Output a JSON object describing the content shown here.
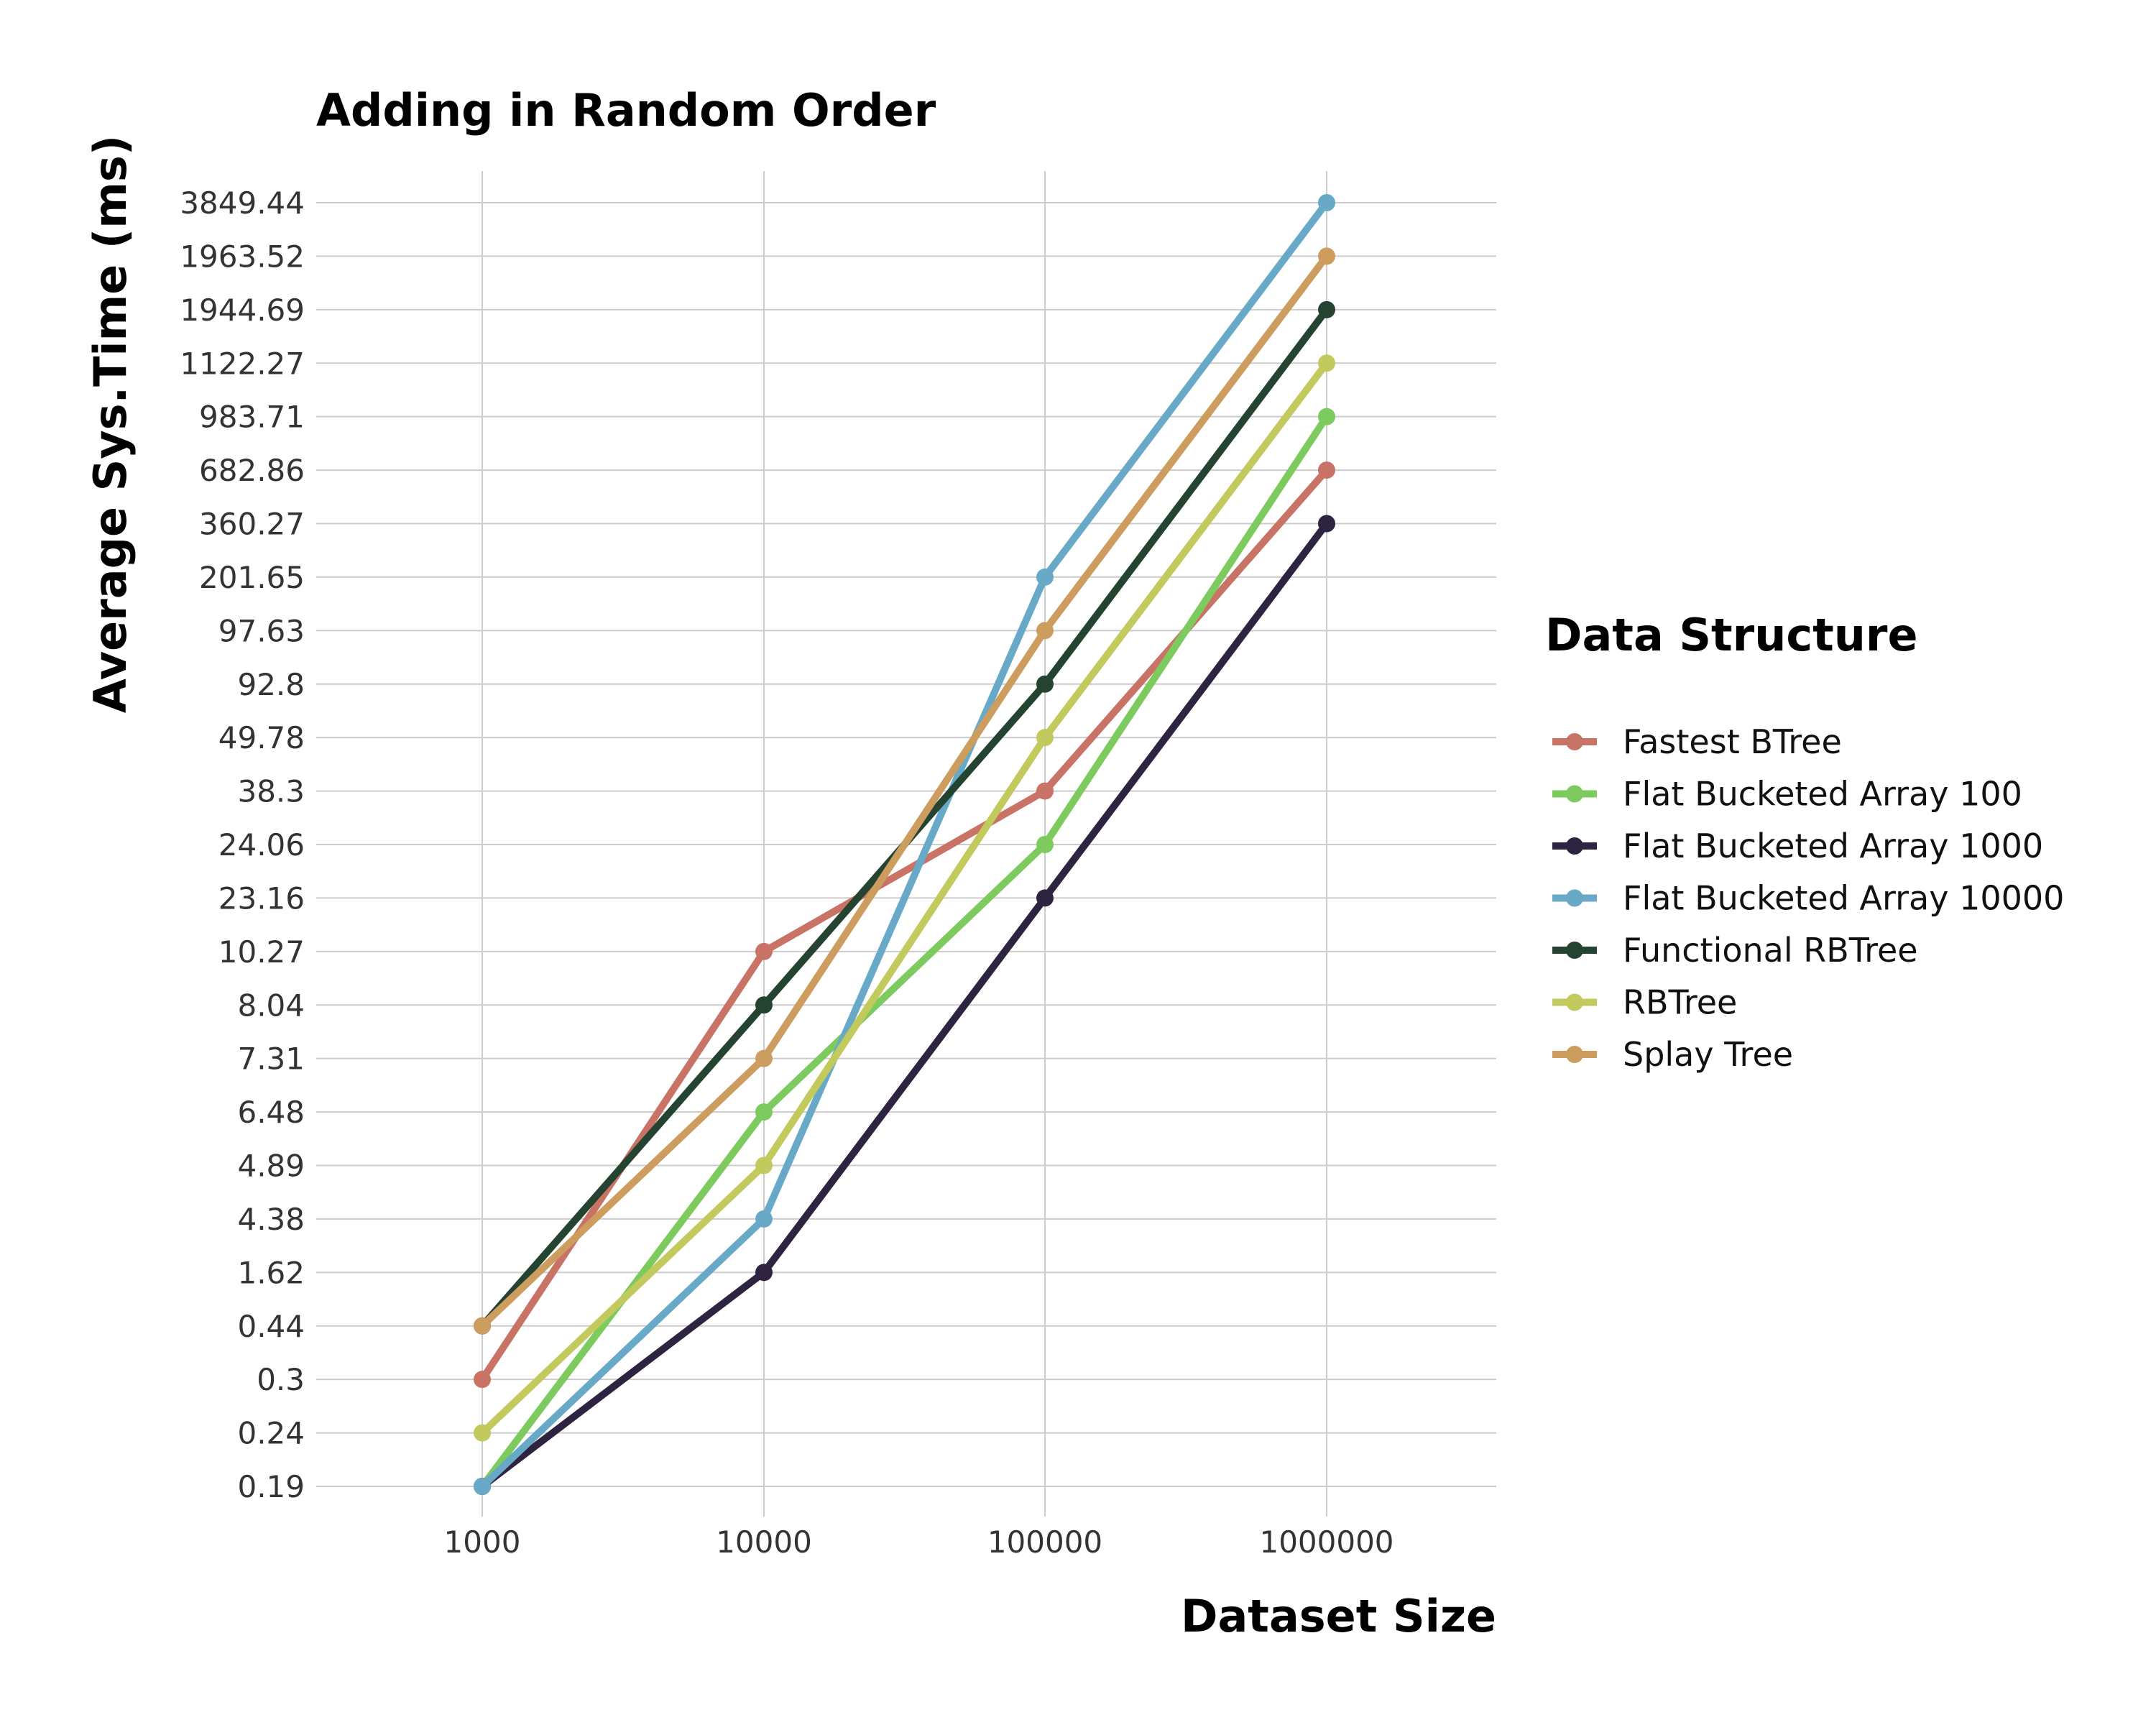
{
  "chart_data": {
    "type": "line",
    "title": "Adding in Random Order",
    "xlabel": "Dataset Size",
    "ylabel": "Average Sys.Time (ms)",
    "x": [
      "1000",
      "10000",
      "100000",
      "1000000"
    ],
    "y_ticks": [
      "0.19",
      "0.24",
      "0.3",
      "0.44",
      "1.62",
      "4.38",
      "4.89",
      "6.48",
      "7.31",
      "8.04",
      "10.27",
      "23.16",
      "24.06",
      "38.3",
      "49.78",
      "92.8",
      "97.63",
      "201.65",
      "360.27",
      "682.86",
      "983.71",
      "1122.27",
      "1944.69",
      "1963.52",
      "3849.44"
    ],
    "y_scale": "categorical (evenly spaced labels)",
    "grid": true,
    "legend_title": "Data Structure",
    "legend_position": "right",
    "series": [
      {
        "name": "Fastest BTree",
        "color": "#C87365",
        "values": [
          "0.3",
          "10.27",
          "38.3",
          "682.86"
        ]
      },
      {
        "name": "Flat Bucketed Array 100",
        "color": "#7DCB5E",
        "values": [
          "0.19",
          "6.48",
          "24.06",
          "983.71"
        ]
      },
      {
        "name": "Flat Bucketed Array 1000",
        "color": "#2E2442",
        "values": [
          "0.19",
          "1.62",
          "23.16",
          "360.27"
        ]
      },
      {
        "name": "Flat Bucketed Array 10000",
        "color": "#68A9C8",
        "values": [
          "0.19",
          "4.38",
          "201.65",
          "3849.44"
        ]
      },
      {
        "name": "Functional RBTree",
        "color": "#244330",
        "values": [
          "0.44",
          "8.04",
          "92.8",
          "1944.69"
        ]
      },
      {
        "name": "RBTree",
        "color": "#C2C95D",
        "values": [
          "0.24",
          "4.89",
          "49.78",
          "1122.27"
        ]
      },
      {
        "name": "Splay Tree",
        "color": "#CD9C5F",
        "values": [
          "0.44",
          "7.31",
          "97.63",
          "1963.52"
        ]
      }
    ]
  }
}
